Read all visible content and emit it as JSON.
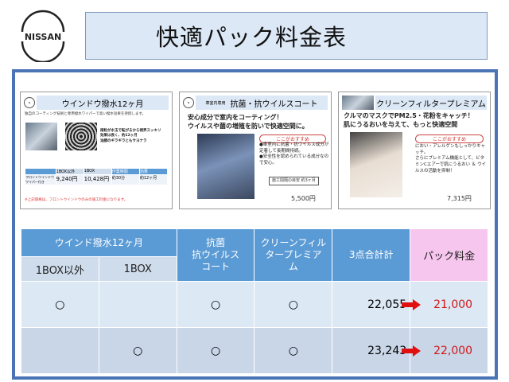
{
  "brand": "NISSAN",
  "title": "快適パック料金表",
  "cards": [
    {
      "header": "ウインドウ撥水12ヶ月",
      "lines": [
        "独自のコーティング技術と専用撥水ワイパーで高い撥水効果を持続します。",
        "雨粒が水玉で転がるから視界スッキリ",
        "効果は長く、約12ヶ月",
        "油膜のギラギラともサヨナラ"
      ],
      "table_head": [
        "1BOX以外",
        "1BOX",
        "作業時間",
        "効果"
      ],
      "row_label": "フロントウインドウ ワイパー付き",
      "prices": [
        "9,240円",
        "10,428円",
        "約30分",
        "約12ヶ月"
      ],
      "note": "※上記価格は、フロントウインドウのみの施工料金になります。"
    },
    {
      "sub": "車室内専用",
      "header": "抗菌・抗ウイルスコート",
      "lines": [
        "安心成分で室内をコーティング！",
        "ウイルスや菌の増殖を防いで快適空間に。"
      ],
      "recommend": "ここがおすすめ",
      "points": [
        "●車室内に抗菌・抗ウイルス成分が定着して長期間持続。",
        "●安全性を認められている成分なので安心。"
      ],
      "duration": "施工間隔の目安 約3ヶ月",
      "price": "5,500円"
    },
    {
      "header": "クリーンフィルタープレミアム",
      "lines": [
        "クルマのマスクでPM2.5・花粉をキャッチ！",
        "肌にうるおいを与えて、もっと快適空間"
      ],
      "recommend": "ここがおすすめ",
      "points": [
        "におい・アレルゲンもしっかりキャッチ。",
        "さらにプレミアム機能として、ビタミンCエアーで肌にうるおい ＆ ウイルスの活動を抑制！"
      ],
      "price": "7,315円"
    }
  ],
  "table": {
    "group_header": "ウインド撥水12ヶ月",
    "sub_headers": [
      "1BOX以外",
      "1BOX"
    ],
    "headers": [
      "抗菌\n抗ウイルス\nコート",
      "クリーンフィル\nタープレミア\nム",
      "3点合計計",
      "パック料金"
    ],
    "rows": [
      {
        "cells": [
          "○",
          "",
          "○",
          "○"
        ],
        "total": "22,055",
        "pack": "21,000"
      },
      {
        "cells": [
          "",
          "○",
          "○",
          "○"
        ],
        "total": "23,243",
        "pack": "22,000"
      }
    ]
  },
  "colors": {
    "header_blue": "#5b9bd5",
    "pack_pink": "#f7c6ee",
    "price_red": "#d01818",
    "frame": "#4a74b5"
  }
}
